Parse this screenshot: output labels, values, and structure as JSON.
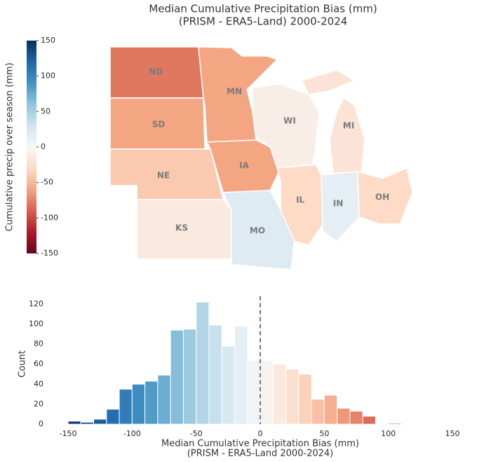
{
  "chart_data": [
    {
      "type": "map",
      "title": "Median Cumulative Precipitation Bias (mm)",
      "subtitle": "(PRISM - ERA5-Land) 2000-2024",
      "colorbar_label": "Cumulative precip over season (mm)",
      "clim": [
        -150,
        150
      ],
      "cticks": [
        -150,
        -100,
        -50,
        0,
        50,
        100,
        150
      ],
      "colors": [
        "#67001f",
        "#b2182b",
        "#d6604d",
        "#f4a582",
        "#fddbc7",
        "#f7f7f7",
        "#d1e5f0",
        "#92c5de",
        "#4393c3",
        "#2166ac",
        "#053061"
      ],
      "regions": [
        {
          "name": "ND",
          "value": -80
        },
        {
          "name": "SD",
          "value": -60
        },
        {
          "name": "NE",
          "value": -40
        },
        {
          "name": "KS",
          "value": -15
        },
        {
          "name": "MN",
          "value": -60
        },
        {
          "name": "IA",
          "value": -60
        },
        {
          "name": "MO",
          "value": 20
        },
        {
          "name": "WI",
          "value": -10
        },
        {
          "name": "IL",
          "value": -30
        },
        {
          "name": "IN",
          "value": 15
        },
        {
          "name": "OH",
          "value": -30
        },
        {
          "name": "MI",
          "value": -20
        }
      ]
    },
    {
      "type": "histogram",
      "xlabel": "Median Cumulative Precipitation Bias (mm)",
      "xlabel2": "(PRISM - ERA5-Land 2000-2024)",
      "ylabel": "Count",
      "bins": [
        -150,
        -140,
        -130,
        -120,
        -110,
        -100,
        -90,
        -80,
        -70,
        -60,
        -50,
        -40,
        -30,
        -20,
        -10,
        0,
        10,
        20,
        30,
        40,
        50,
        60,
        70,
        80,
        90,
        100,
        110
      ],
      "counts": [
        3,
        2,
        5,
        15,
        35,
        40,
        43,
        49,
        94,
        95,
        122,
        99,
        78,
        98,
        64,
        64,
        60,
        55,
        50,
        25,
        29,
        16,
        13,
        8,
        0,
        1
      ],
      "reverse_colormap": true,
      "vline": 0,
      "xlim": [
        -150,
        150
      ],
      "xticks": [
        -150,
        -100,
        -50,
        0,
        50,
        100,
        150
      ],
      "ylim": [
        0,
        128
      ],
      "yticks": [
        0,
        20,
        40,
        60,
        80,
        100,
        120
      ]
    }
  ]
}
